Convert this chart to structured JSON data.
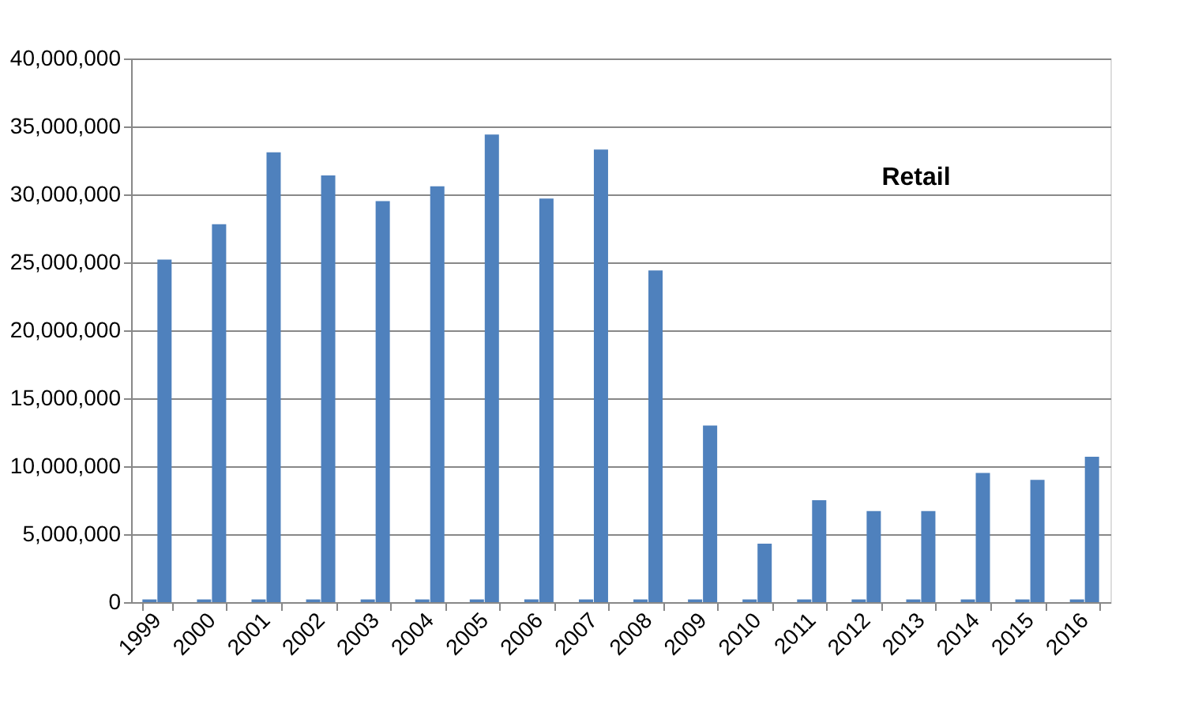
{
  "chart_data": {
    "type": "bar",
    "categories": [
      "1999",
      "2000",
      "2001",
      "2002",
      "2003",
      "2004",
      "2005",
      "2006",
      "2007",
      "2008",
      "2009",
      "2010",
      "2011",
      "2012",
      "2013",
      "2014",
      "2015",
      "2016"
    ],
    "series": [
      {
        "color": "#4f81bd",
        "values": [
          200000,
          200000,
          200000,
          200000,
          200000,
          200000,
          200000,
          200000,
          200000,
          200000,
          200000,
          200000,
          200000,
          200000,
          200000,
          200000,
          200000,
          200000
        ]
      },
      {
        "color": "#4f81bd",
        "values": [
          25200000,
          27800000,
          33100000,
          31400000,
          29500000,
          30600000,
          34400000,
          29700000,
          33300000,
          24400000,
          13000000,
          4300000,
          7500000,
          6700000,
          6700000,
          9500000,
          9000000,
          10700000
        ]
      }
    ],
    "ylim": [
      0,
      40000000
    ],
    "yticks": [
      {
        "value": 0,
        "label": "0"
      },
      {
        "value": 5000000,
        "label": "5,000,000"
      },
      {
        "value": 10000000,
        "label": "10,000,000"
      },
      {
        "value": 15000000,
        "label": "15,000,000"
      },
      {
        "value": 20000000,
        "label": "20,000,000"
      },
      {
        "value": 25000000,
        "label": "25,000,000"
      },
      {
        "value": 30000000,
        "label": "30,000,000"
      },
      {
        "value": 35000000,
        "label": "35,000,000"
      },
      {
        "value": 40000000,
        "label": "40,000,000"
      }
    ],
    "grid": "y",
    "annotations": [
      "Retail"
    ]
  }
}
